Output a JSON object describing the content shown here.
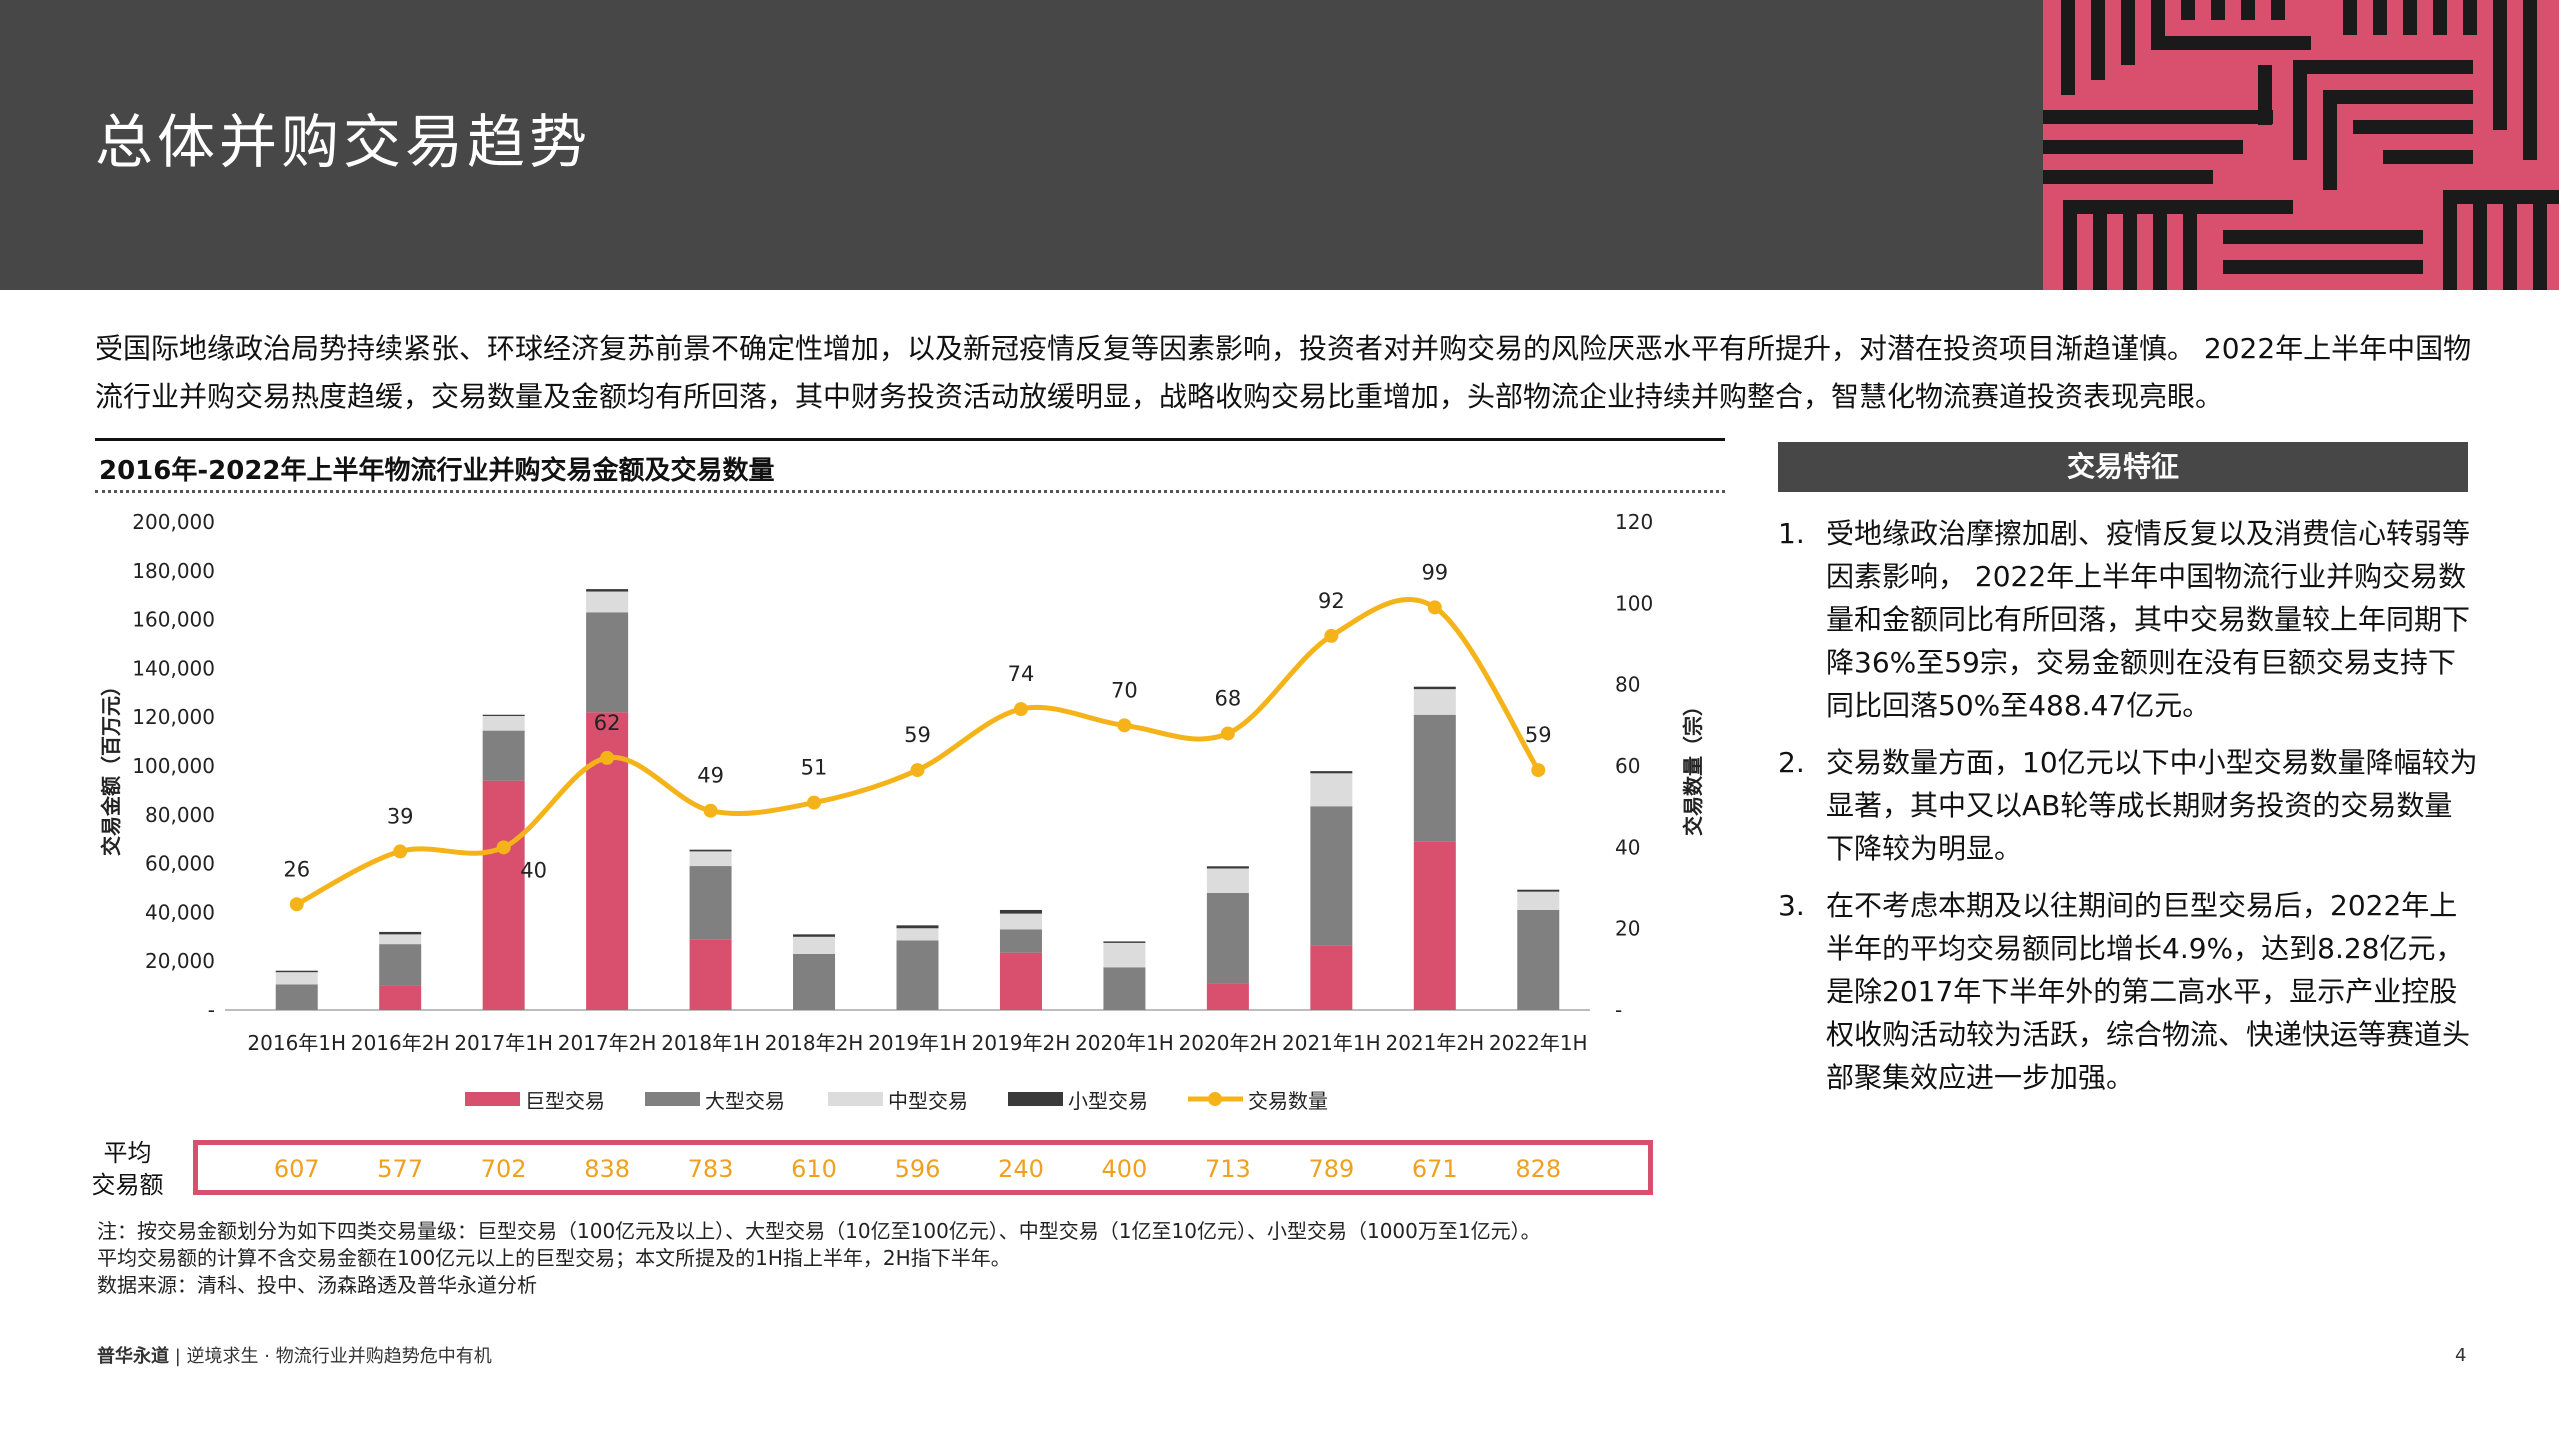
{
  "header": {
    "title": "总体并购交易趋势"
  },
  "intro": "受国际地缘政治局势持续紧张、环球经济复苏前景不确定性增加，以及新冠疫情反复等因素影响，投资者对并购交易的风险厌恶水平有所提升，对潜在投资项目渐趋谨慎。 2022年上半年中国物流行业并购交易热度趋缓，交易数量及金额均有所回落，其中财务投资活动放缓明显，战略收购交易比重增加，头部物流企业持续并购整合，智慧化物流赛道投资表现亮眼。",
  "colors": {
    "giant": "#d94f6e",
    "large": "#808080",
    "medium": "#dcdcdc",
    "small": "#3a3a3a",
    "count": "#f5b31a",
    "header": "#474747",
    "avg_text": "#f0a020"
  },
  "chart_data": {
    "type": "bar",
    "title": "2016年-2022年上半年物流行业并购交易金额及交易数量",
    "categories": [
      "2016年1H",
      "2016年2H",
      "2017年1H",
      "2017年2H",
      "2018年1H",
      "2018年2H",
      "2019年1H",
      "2019年2H",
      "2020年1H",
      "2020年2H",
      "2021年1H",
      "2021年2H",
      "2022年1H"
    ],
    "series": [
      {
        "name": "巨型交易",
        "values": [
          0,
          10000,
          94000,
          122000,
          29000,
          0,
          0,
          23500,
          0,
          11000,
          26500,
          69000,
          0
        ]
      },
      {
        "name": "大型交易",
        "values": [
          10500,
          17000,
          20500,
          41000,
          30000,
          23000,
          28500,
          9500,
          17500,
          37000,
          57000,
          52000,
          41000
        ]
      },
      {
        "name": "中型交易",
        "values": [
          5000,
          4000,
          6000,
          8500,
          6000,
          7000,
          5000,
          6500,
          10000,
          10000,
          13500,
          10500,
          7500
        ]
      },
      {
        "name": "小型交易",
        "values": [
          600,
          1000,
          500,
          1000,
          700,
          1000,
          1200,
          1500,
          600,
          900,
          900,
          1000,
          800
        ]
      }
    ],
    "line": {
      "name": "交易数量",
      "values": [
        26,
        39,
        40,
        62,
        49,
        51,
        59,
        74,
        70,
        68,
        92,
        99,
        59
      ]
    },
    "ylabel": "交易金额（百万元）",
    "y2label": "交易数量（宗）",
    "ylim": [
      0,
      200000
    ],
    "y2lim": [
      0,
      120
    ],
    "y_ticks": [
      "-",
      "20,000",
      "40,000",
      "60,000",
      "80,000",
      "100,000",
      "120,000",
      "140,000",
      "160,000",
      "180,000",
      "200,000"
    ],
    "y2_ticks": [
      "-",
      "20",
      "40",
      "60",
      "80",
      "100",
      "120"
    ],
    "legend": [
      "巨型交易",
      "大型交易",
      "中型交易",
      "小型交易",
      "交易数量"
    ],
    "legend_position": "bottom"
  },
  "average": {
    "label_line1": "平均",
    "label_line2": "交易额",
    "values": [
      "607",
      "577",
      "702",
      "838",
      "783",
      "610",
      "596",
      "240",
      "400",
      "713",
      "789",
      "671",
      "828"
    ]
  },
  "notes": [
    "注：按交易金额划分为如下四类交易量级：巨型交易（100亿元及以上）、大型交易（10亿至100亿元）、中型交易（1亿至10亿元）、小型交易（1000万至1亿元）。",
    "平均交易额的计算不含交易金额在100亿元以上的巨型交易；本文所提及的1H指上半年，2H指下半年。",
    "数据来源：清科、投中、汤森路透及普华永道分析"
  ],
  "side": {
    "header": "交易特征",
    "items": [
      {
        "num": "1.",
        "text": "受地缘政治摩擦加剧、疫情反复以及消费信心转弱等因素影响， 2022年上半年中国物流行业并购交易数量和金额同比有所回落，其中交易数量较上年同期下降36%至59宗，交易金额则在没有巨额交易支持下同比回落50%至488.47亿元。"
      },
      {
        "num": "2.",
        "text": "交易数量方面，10亿元以下中小型交易数量降幅较为显著，其中又以AB轮等成长期财务投资的交易数量下降较为明显。"
      },
      {
        "num": "3.",
        "text": "在不考虑本期及以往期间的巨型交易后，2022年上半年的平均交易额同比增长4.9%，达到8.28亿元，是除2017年下半年外的第二高水平，显示产业控股权收购活动较为活跃，综合物流、快递快运等赛道头部聚集效应进一步加强。"
      }
    ]
  },
  "footer": {
    "brand": "普华永道",
    "separator": "|",
    "text": "逆境求生 · 物流行业并购趋势危中有机",
    "page": "4"
  }
}
